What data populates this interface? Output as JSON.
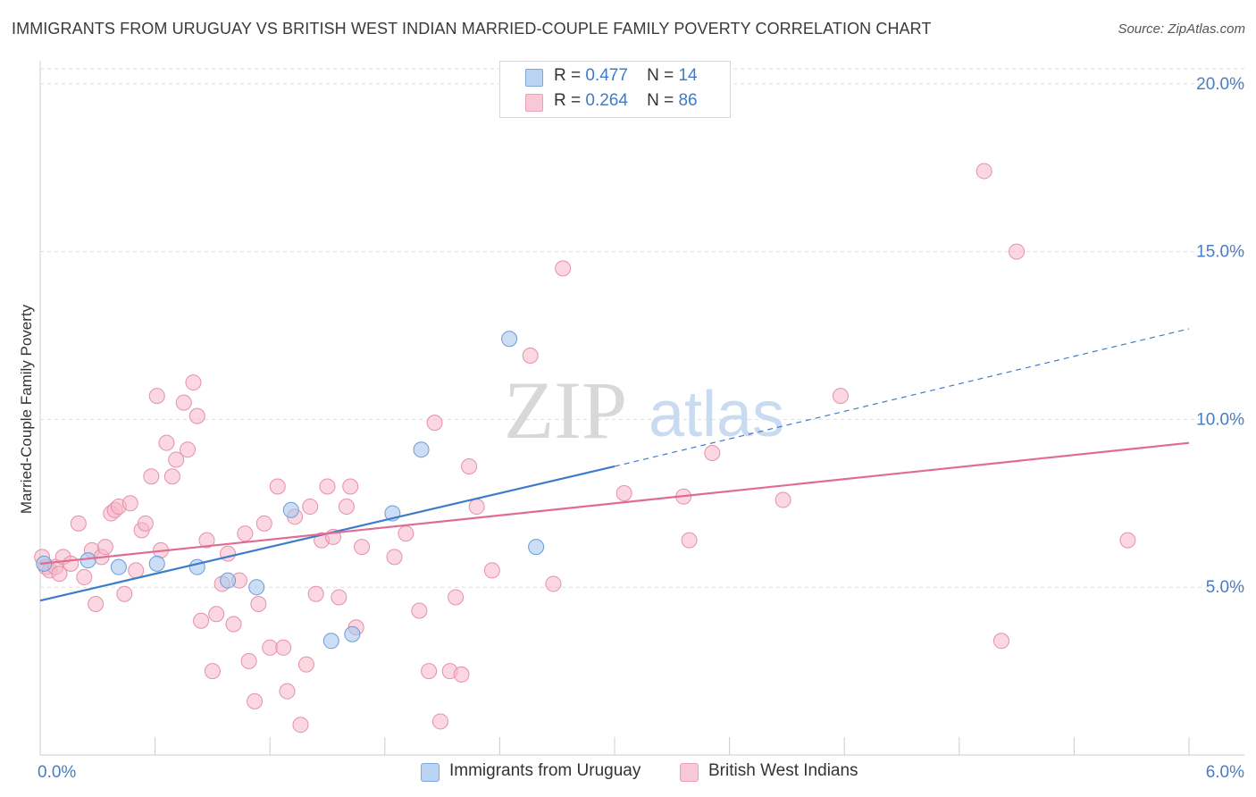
{
  "title": "IMMIGRANTS FROM URUGUAY VS BRITISH WEST INDIAN MARRIED-COUPLE FAMILY POVERTY CORRELATION CHART",
  "source": "Source: ZipAtlas.com",
  "watermark": {
    "zip": "ZIP",
    "atlas": "atlas"
  },
  "legend": {
    "rows": [
      {
        "r_label": "R =",
        "r_value": "0.477",
        "n_label": "N =",
        "n_value": "14",
        "color": "#a9c8ef"
      },
      {
        "r_label": "R =",
        "r_value": "0.264",
        "n_label": "N =",
        "n_value": "86",
        "color": "#f6b7c9"
      }
    ]
  },
  "bottom_legend": [
    {
      "label": "Immigrants from Uruguay",
      "color": "#a9c8ef"
    },
    {
      "label": "British West Indians",
      "color": "#f6b7c9"
    }
  ],
  "colors": {
    "blue_fill": "#a9c8ef",
    "blue_stroke": "#6b9bd8",
    "blue_line": "#3d7cc9",
    "pink_fill": "#f6b7c9",
    "pink_stroke": "#e590ac",
    "pink_line": "#e06c93",
    "tick_label": "#4a7cc4",
    "grid": "#dddddd"
  },
  "chart_data": {
    "type": "scatter",
    "title": "IMMIGRANTS FROM URUGUAY VS BRITISH WEST INDIAN MARRIED-COUPLE FAMILY POVERTY CORRELATION CHART",
    "xlabel": "",
    "ylabel": "Married-Couple Family Poverty",
    "xlim": [
      0,
      6
    ],
    "ylim": [
      0,
      20.5
    ],
    "x_tick_labels": [
      "0.0%",
      "6.0%"
    ],
    "y_ticks": [
      5,
      10,
      15,
      20
    ],
    "y_tick_labels": [
      "5.0%",
      "10.0%",
      "15.0%",
      "20.0%"
    ],
    "grid": true,
    "legend_placement": "top-center",
    "series": [
      {
        "name": "Immigrants from Uruguay",
        "color": "#a9c8ef",
        "r": 0.477,
        "n": 14,
        "trend": {
          "x0": 0,
          "y0": 4.6,
          "x1": 3.0,
          "y1": 8.6,
          "dashed_to_x": 6.0,
          "dashed_to_y": 12.7
        },
        "points": [
          [
            0.02,
            5.7
          ],
          [
            0.25,
            5.8
          ],
          [
            0.41,
            5.6
          ],
          [
            0.61,
            5.7
          ],
          [
            0.82,
            5.6
          ],
          [
            0.98,
            5.2
          ],
          [
            1.13,
            5.0
          ],
          [
            1.31,
            7.3
          ],
          [
            1.52,
            3.4
          ],
          [
            1.63,
            3.6
          ],
          [
            1.84,
            7.2
          ],
          [
            1.99,
            9.1
          ],
          [
            2.45,
            12.4
          ],
          [
            2.59,
            6.2
          ]
        ]
      },
      {
        "name": "British West Indians",
        "color": "#f6b7c9",
        "r": 0.264,
        "n": 86,
        "trend": {
          "x0": 0,
          "y0": 5.7,
          "x1": 6.0,
          "y1": 9.3
        },
        "points": [
          [
            0.01,
            5.9
          ],
          [
            0.03,
            5.6
          ],
          [
            0.05,
            5.5
          ],
          [
            0.08,
            5.6
          ],
          [
            0.1,
            5.4
          ],
          [
            0.12,
            5.9
          ],
          [
            0.16,
            5.7
          ],
          [
            0.2,
            6.9
          ],
          [
            0.23,
            5.3
          ],
          [
            0.27,
            6.1
          ],
          [
            0.29,
            4.5
          ],
          [
            0.32,
            5.9
          ],
          [
            0.34,
            6.2
          ],
          [
            0.37,
            7.2
          ],
          [
            0.39,
            7.3
          ],
          [
            0.41,
            7.4
          ],
          [
            0.44,
            4.8
          ],
          [
            0.47,
            7.5
          ],
          [
            0.5,
            5.5
          ],
          [
            0.53,
            6.7
          ],
          [
            0.55,
            6.9
          ],
          [
            0.58,
            8.3
          ],
          [
            0.61,
            10.7
          ],
          [
            0.63,
            6.1
          ],
          [
            0.66,
            9.3
          ],
          [
            0.69,
            8.3
          ],
          [
            0.71,
            8.8
          ],
          [
            0.75,
            10.5
          ],
          [
            0.77,
            9.1
          ],
          [
            0.8,
            11.1
          ],
          [
            0.82,
            10.1
          ],
          [
            0.84,
            4.0
          ],
          [
            0.87,
            6.4
          ],
          [
            0.9,
            2.5
          ],
          [
            0.92,
            4.2
          ],
          [
            0.95,
            5.1
          ],
          [
            0.98,
            6.0
          ],
          [
            1.01,
            3.9
          ],
          [
            1.04,
            5.2
          ],
          [
            1.07,
            6.6
          ],
          [
            1.09,
            2.8
          ],
          [
            1.12,
            1.6
          ],
          [
            1.14,
            4.5
          ],
          [
            1.17,
            6.9
          ],
          [
            1.2,
            3.2
          ],
          [
            1.24,
            8.0
          ],
          [
            1.27,
            3.2
          ],
          [
            1.29,
            1.9
          ],
          [
            1.33,
            7.1
          ],
          [
            1.36,
            0.9
          ],
          [
            1.39,
            2.7
          ],
          [
            1.41,
            7.4
          ],
          [
            1.44,
            4.8
          ],
          [
            1.47,
            6.4
          ],
          [
            1.5,
            8.0
          ],
          [
            1.53,
            6.5
          ],
          [
            1.56,
            4.7
          ],
          [
            1.6,
            7.4
          ],
          [
            1.62,
            8.0
          ],
          [
            1.65,
            3.8
          ],
          [
            1.68,
            6.2
          ],
          [
            1.85,
            5.9
          ],
          [
            1.91,
            6.6
          ],
          [
            1.98,
            4.3
          ],
          [
            2.03,
            2.5
          ],
          [
            2.06,
            9.9
          ],
          [
            2.09,
            1.0
          ],
          [
            2.14,
            2.5
          ],
          [
            2.17,
            4.7
          ],
          [
            2.2,
            2.4
          ],
          [
            2.24,
            8.6
          ],
          [
            2.28,
            7.4
          ],
          [
            2.36,
            5.5
          ],
          [
            2.56,
            11.9
          ],
          [
            2.68,
            5.1
          ],
          [
            2.73,
            14.5
          ],
          [
            3.05,
            7.8
          ],
          [
            3.36,
            7.7
          ],
          [
            3.39,
            6.4
          ],
          [
            3.51,
            9.0
          ],
          [
            3.88,
            7.6
          ],
          [
            4.18,
            10.7
          ],
          [
            4.93,
            17.4
          ],
          [
            5.02,
            3.4
          ],
          [
            5.1,
            15.0
          ],
          [
            5.68,
            6.4
          ]
        ]
      }
    ]
  }
}
